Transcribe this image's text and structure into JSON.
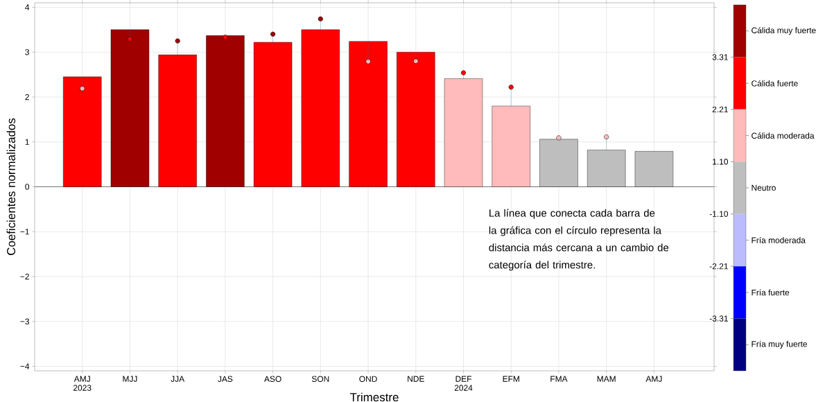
{
  "chart_data": [
    {
      "type": "bar",
      "xlabel": "Trimestre",
      "ylabel": "Coeficientes normalizados",
      "categories": [
        "AMJ 2023",
        "MJJ",
        "JJA",
        "JAS",
        "ASO",
        "SON",
        "OND",
        "NDE",
        "DEF 2024",
        "EFM",
        "FMA",
        "MAM",
        "AMJ"
      ],
      "series": [
        {
          "type": "bar",
          "values": [
            2.45,
            3.5,
            2.94,
            3.37,
            3.22,
            3.5,
            3.24,
            3.0,
            2.41,
            1.8,
            1.06,
            0.82,
            0.79
          ],
          "colors": [
            "#ff0000",
            "#a00000",
            "#ff0000",
            "#a00000",
            "#ff0000",
            "#ff0000",
            "#ff0000",
            "#ff0000",
            "#ffbbbb",
            "#ffbbbb",
            "#bebebe",
            "#bebebe",
            "#bebebe"
          ]
        },
        {
          "type": "scatter",
          "values": [
            2.19,
            3.29,
            3.25,
            3.33,
            3.4,
            3.74,
            2.79,
            2.8,
            2.54,
            2.22,
            1.09,
            1.11,
            null
          ],
          "colors": [
            "#ffbbbb",
            "#ff0000",
            "#a00000",
            "#ff0000",
            "#a00000",
            "#a00000",
            "#ffbbbb",
            "#ffbbbb",
            "#ff0000",
            "#ff0000",
            "#ffbbbb",
            "#ffbbbb",
            null
          ]
        }
      ],
      "ylim": [
        -4.1,
        4.1
      ],
      "yticks": [
        {
          "value": -4,
          "label": "−4"
        },
        {
          "value": -3,
          "label": "−3"
        },
        {
          "value": -2,
          "label": "−2"
        },
        {
          "value": -1,
          "label": "−1"
        },
        0,
        1,
        2,
        3,
        4
      ],
      "grid": true,
      "marker": "circle",
      "ref_lines": [
        {
          "axis": "y",
          "value": 0,
          "color": "#555555"
        }
      ],
      "annotations": [
        "La línea que conecta cada barra de la gráfica con el círculo representa la distancia más cercana a un cambio de categoría del trimestre."
      ]
    },
    {
      "type": "other",
      "categories": [
        "Cálida muy fuerte",
        "Cálida fuerte",
        "Cálida moderada",
        "Neutro",
        "Fría moderada",
        "Fría fuerte",
        "Fría muy fuerte"
      ],
      "colors": [
        "#a00000",
        "#ff0000",
        "#ffbbbb",
        "#bebebe",
        "#bbbbff",
        "#0000ff",
        "#000080"
      ],
      "annotations": [
        "3.31",
        "2.21",
        "1.10",
        "-1.10",
        "-2.21",
        "-3.31"
      ]
    }
  ]
}
